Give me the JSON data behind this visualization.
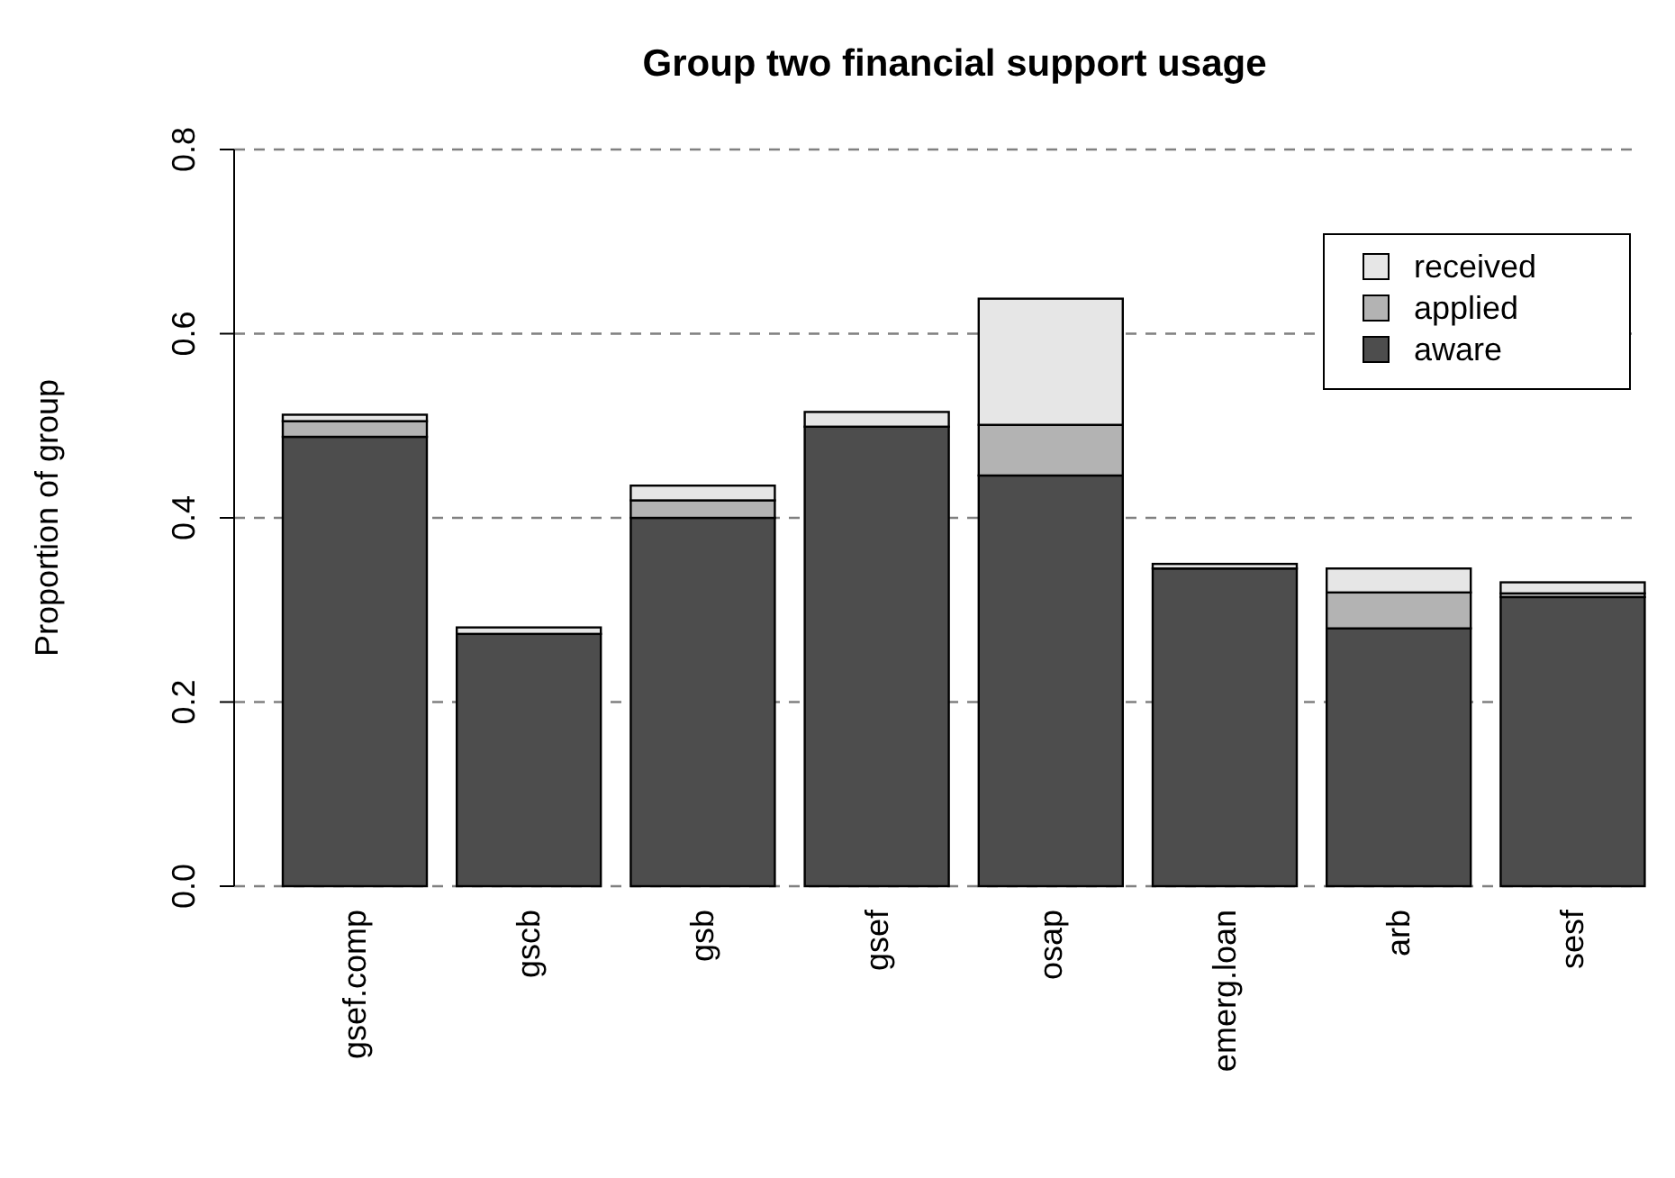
{
  "chart_data": {
    "type": "bar",
    "title": "Group two financial support usage",
    "ylabel": "Proportion of group",
    "categories": [
      "gsef.comp",
      "gscb",
      "gsb",
      "gsef",
      "osap",
      "emerg.loan",
      "arb",
      "sesf"
    ],
    "stacked": true,
    "series": [
      {
        "name": "aware",
        "color": "#4d4d4d",
        "values": [
          0.488,
          0.274,
          0.4,
          0.499,
          0.446,
          0.345,
          0.28,
          0.314
        ]
      },
      {
        "name": "applied",
        "color": "#b3b3b3",
        "values": [
          0.017,
          null,
          0.019,
          0,
          0.055,
          0,
          0.039,
          0.004
        ]
      },
      {
        "name": "received",
        "color": "#e6e6e6",
        "values": [
          0.007,
          0.007,
          0.016,
          0.016,
          0.137,
          0.005,
          0.026,
          0.012
        ]
      }
    ],
    "ylim": [
      0,
      0.8
    ],
    "yticks": [
      {
        "value": 0,
        "label": "0.0"
      },
      {
        "value": 0.2,
        "label": "0.2"
      },
      {
        "value": 0.4,
        "label": "0.4"
      },
      {
        "value": 0.6,
        "label": "0.6"
      },
      {
        "value": 0.8,
        "label": "0.8"
      }
    ],
    "grid": "y",
    "legend": "top right"
  }
}
